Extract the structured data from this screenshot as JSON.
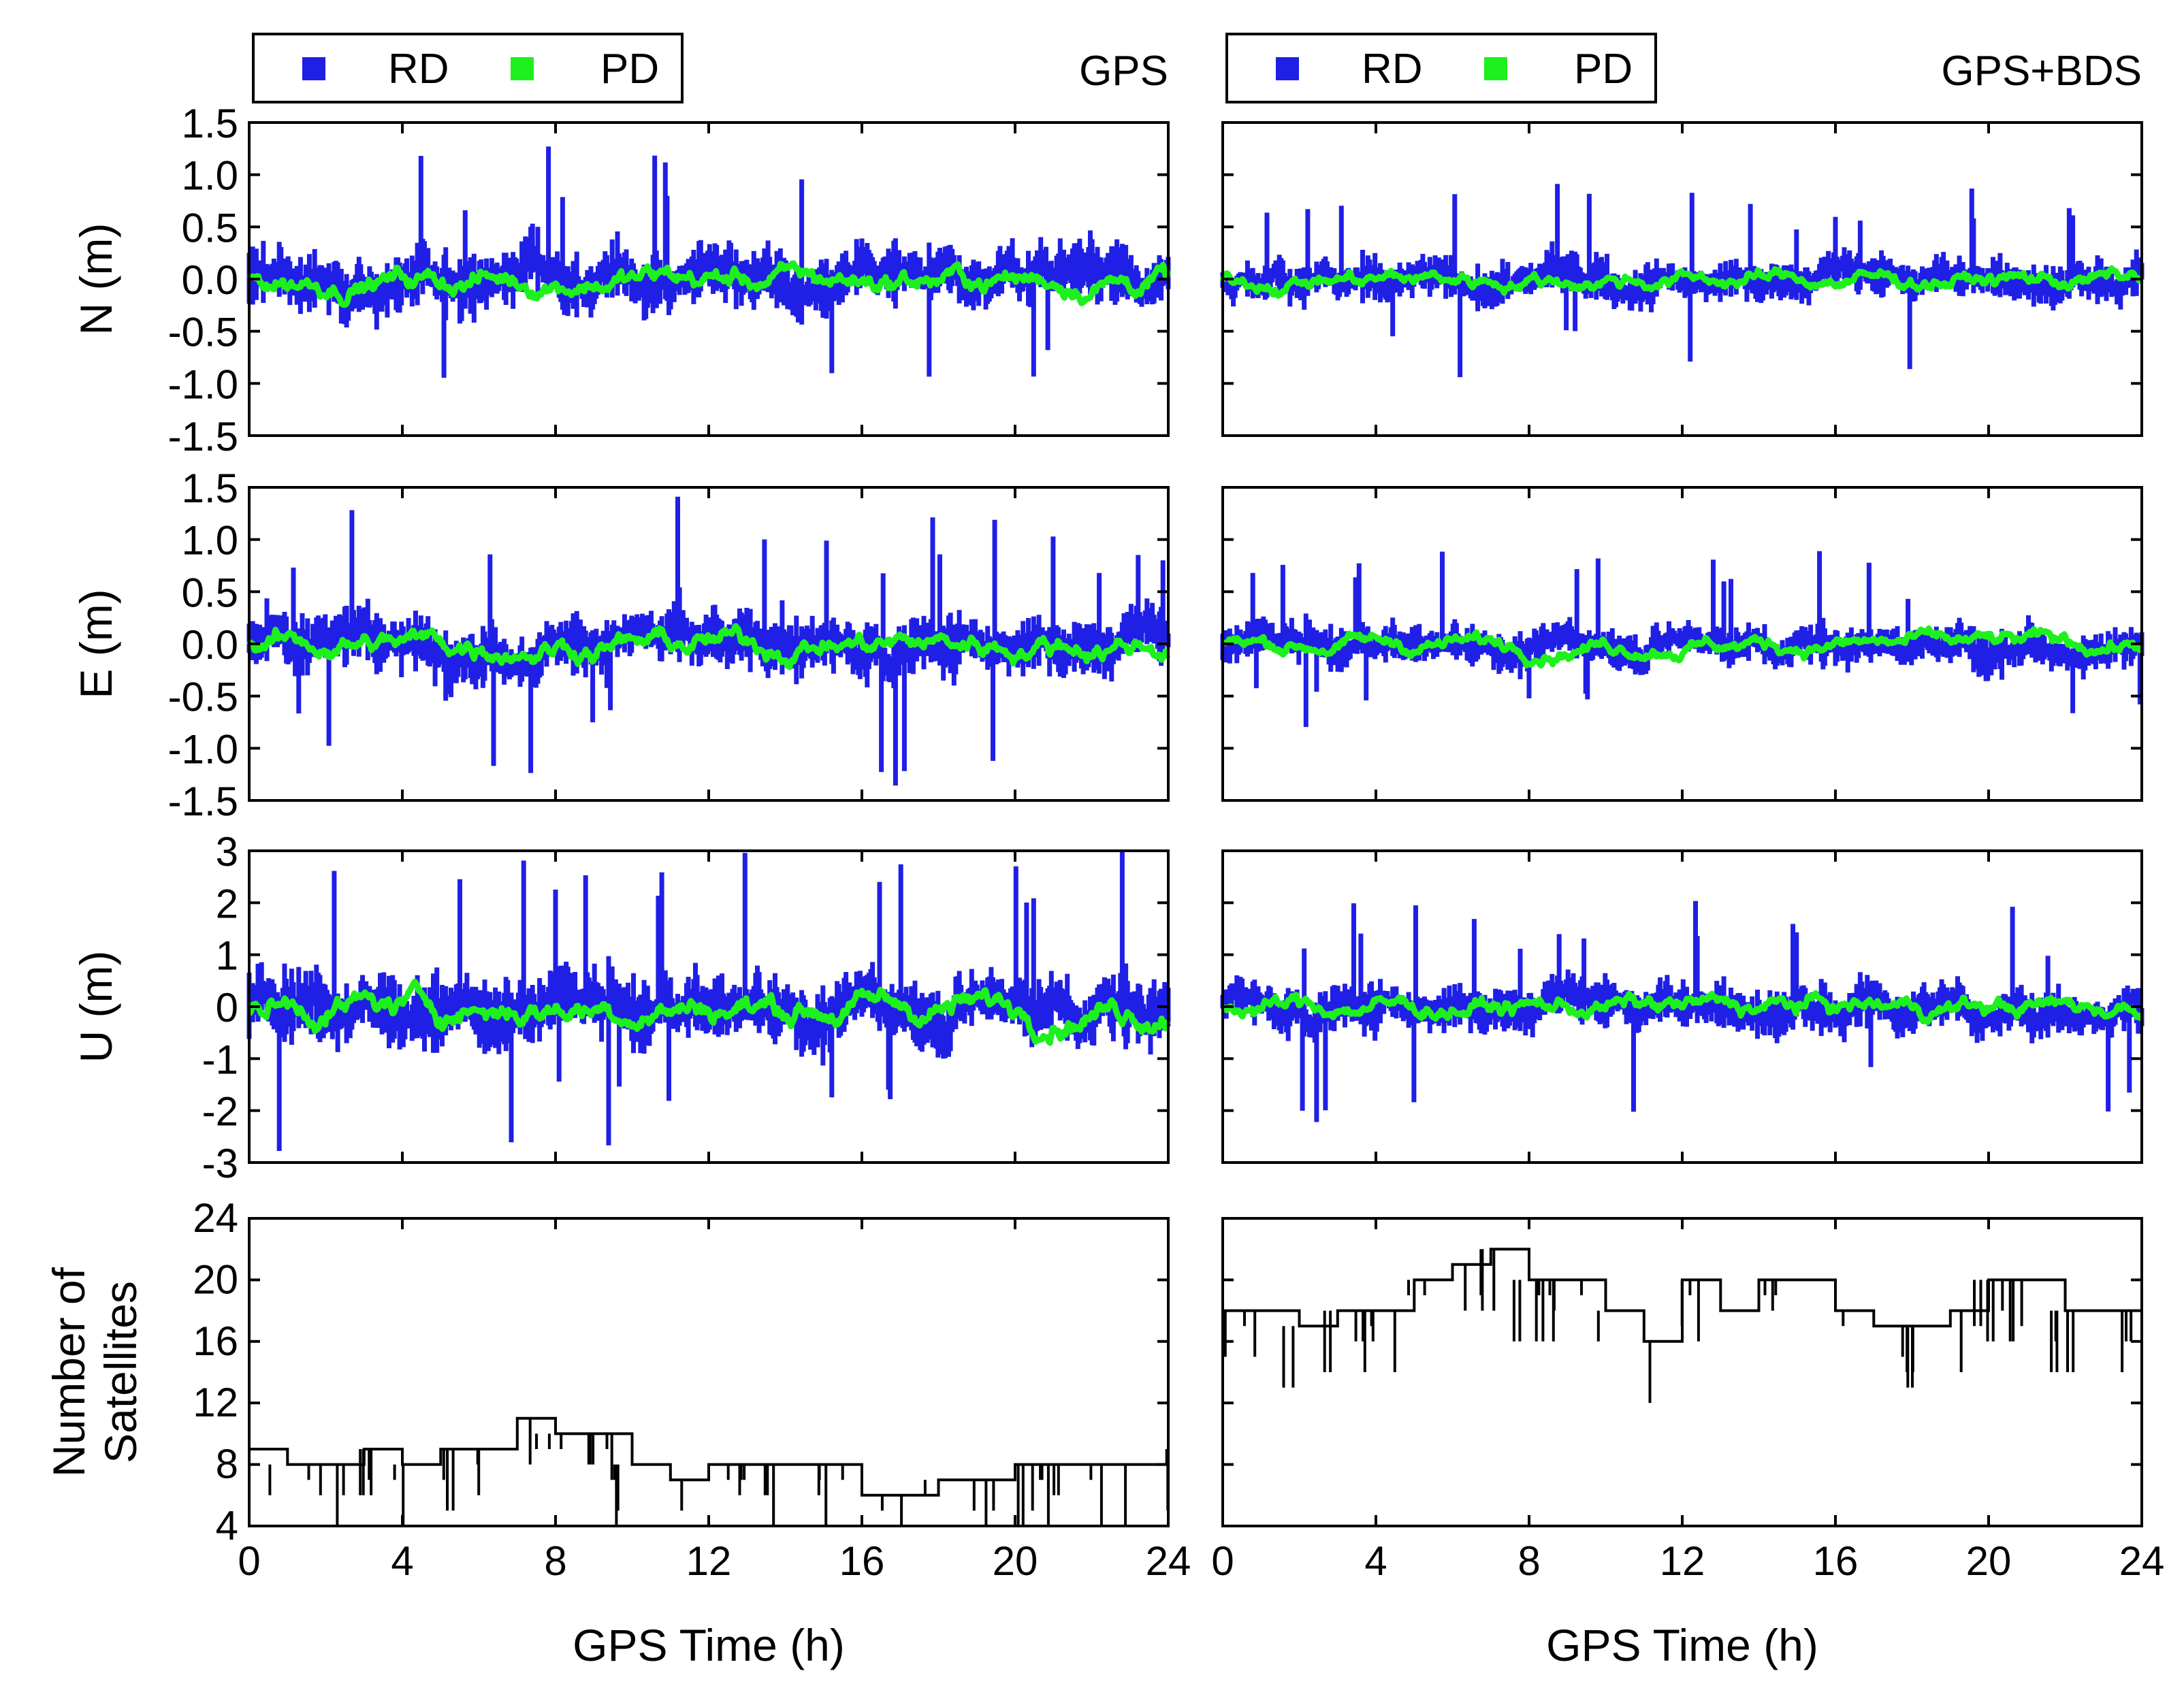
{
  "chart_data": {
    "type": "scatter",
    "title": "",
    "columns": [
      {
        "label": "GPS",
        "positioning_mode_labels": [
          "RD",
          "PD"
        ],
        "legend_position": "top-left"
      },
      {
        "label": "GPS+BDS",
        "positioning_mode_labels": [
          "RD",
          "PD"
        ],
        "legend_position": "top-left"
      }
    ],
    "rows": [
      {
        "ylabel": "N (m)",
        "ylim": [
          -1.5,
          1.5
        ],
        "yticks": [
          "1.5",
          "1.0",
          "0.5",
          "0.0",
          "-0.5",
          "-1.0",
          "-1.5"
        ],
        "ytick_values": [
          1.5,
          1.0,
          0.5,
          0.0,
          -0.5,
          -1.0,
          -1.5
        ]
      },
      {
        "ylabel": "E (m)",
        "ylim": [
          -1.5,
          1.5
        ],
        "yticks": [
          "1.5",
          "1.0",
          "0.5",
          "0.0",
          "-0.5",
          "-1.0",
          "-1.5"
        ],
        "ytick_values": [
          1.5,
          1.0,
          0.5,
          0.0,
          -0.5,
          -1.0,
          -1.5
        ]
      },
      {
        "ylabel": "U (m)",
        "ylim": [
          -3,
          3
        ],
        "yticks": [
          "3",
          "2",
          "1",
          "0",
          "-1",
          "-2",
          "-3"
        ],
        "ytick_values": [
          3,
          2,
          1,
          0,
          -1,
          -2,
          -3
        ]
      },
      {
        "ylabel_lines": [
          "Number of",
          "Satellites"
        ],
        "ylim": [
          4,
          24
        ],
        "yticks": [
          "24",
          "20",
          "16",
          "12",
          "8",
          "4"
        ],
        "ytick_values": [
          24,
          20,
          16,
          12,
          8,
          4
        ]
      }
    ],
    "xlabel": "GPS Time (h)",
    "xlim": [
      0,
      24
    ],
    "xticks": [
      "0",
      "4",
      "8",
      "12",
      "16",
      "20",
      "24"
    ],
    "xtick_values": [
      0,
      4,
      8,
      12,
      16,
      20,
      24
    ],
    "series": [
      {
        "name": "RD",
        "color": "#1f1fe6",
        "mark": "square"
      },
      {
        "name": "PD",
        "color": "#1ef01e",
        "mark": "square"
      }
    ],
    "satellite_series_color": "#000000",
    "satellite_counts": {
      "GPS": {
        "x": [
          0,
          1,
          2,
          3,
          4,
          5,
          6,
          7,
          8,
          9,
          10,
          11,
          12,
          13,
          14,
          15,
          16,
          17,
          18,
          19,
          20,
          21,
          22,
          23,
          24
        ],
        "y": [
          9,
          8,
          8,
          9,
          8,
          9,
          9,
          11,
          10,
          10,
          8,
          7,
          8,
          8,
          8,
          8,
          6,
          6,
          7,
          7,
          8,
          8,
          8,
          8,
          9
        ]
      },
      "GPS+BDS": {
        "x": [
          0,
          1,
          2,
          3,
          4,
          5,
          6,
          7,
          8,
          9,
          10,
          11,
          12,
          13,
          14,
          15,
          16,
          17,
          18,
          19,
          20,
          21,
          22,
          23,
          24
        ],
        "y": [
          18,
          18,
          17,
          18,
          18,
          20,
          21,
          22,
          20,
          20,
          18,
          16,
          20,
          18,
          20,
          20,
          18,
          17,
          17,
          18,
          20,
          20,
          18,
          18,
          18
        ]
      }
    }
  }
}
